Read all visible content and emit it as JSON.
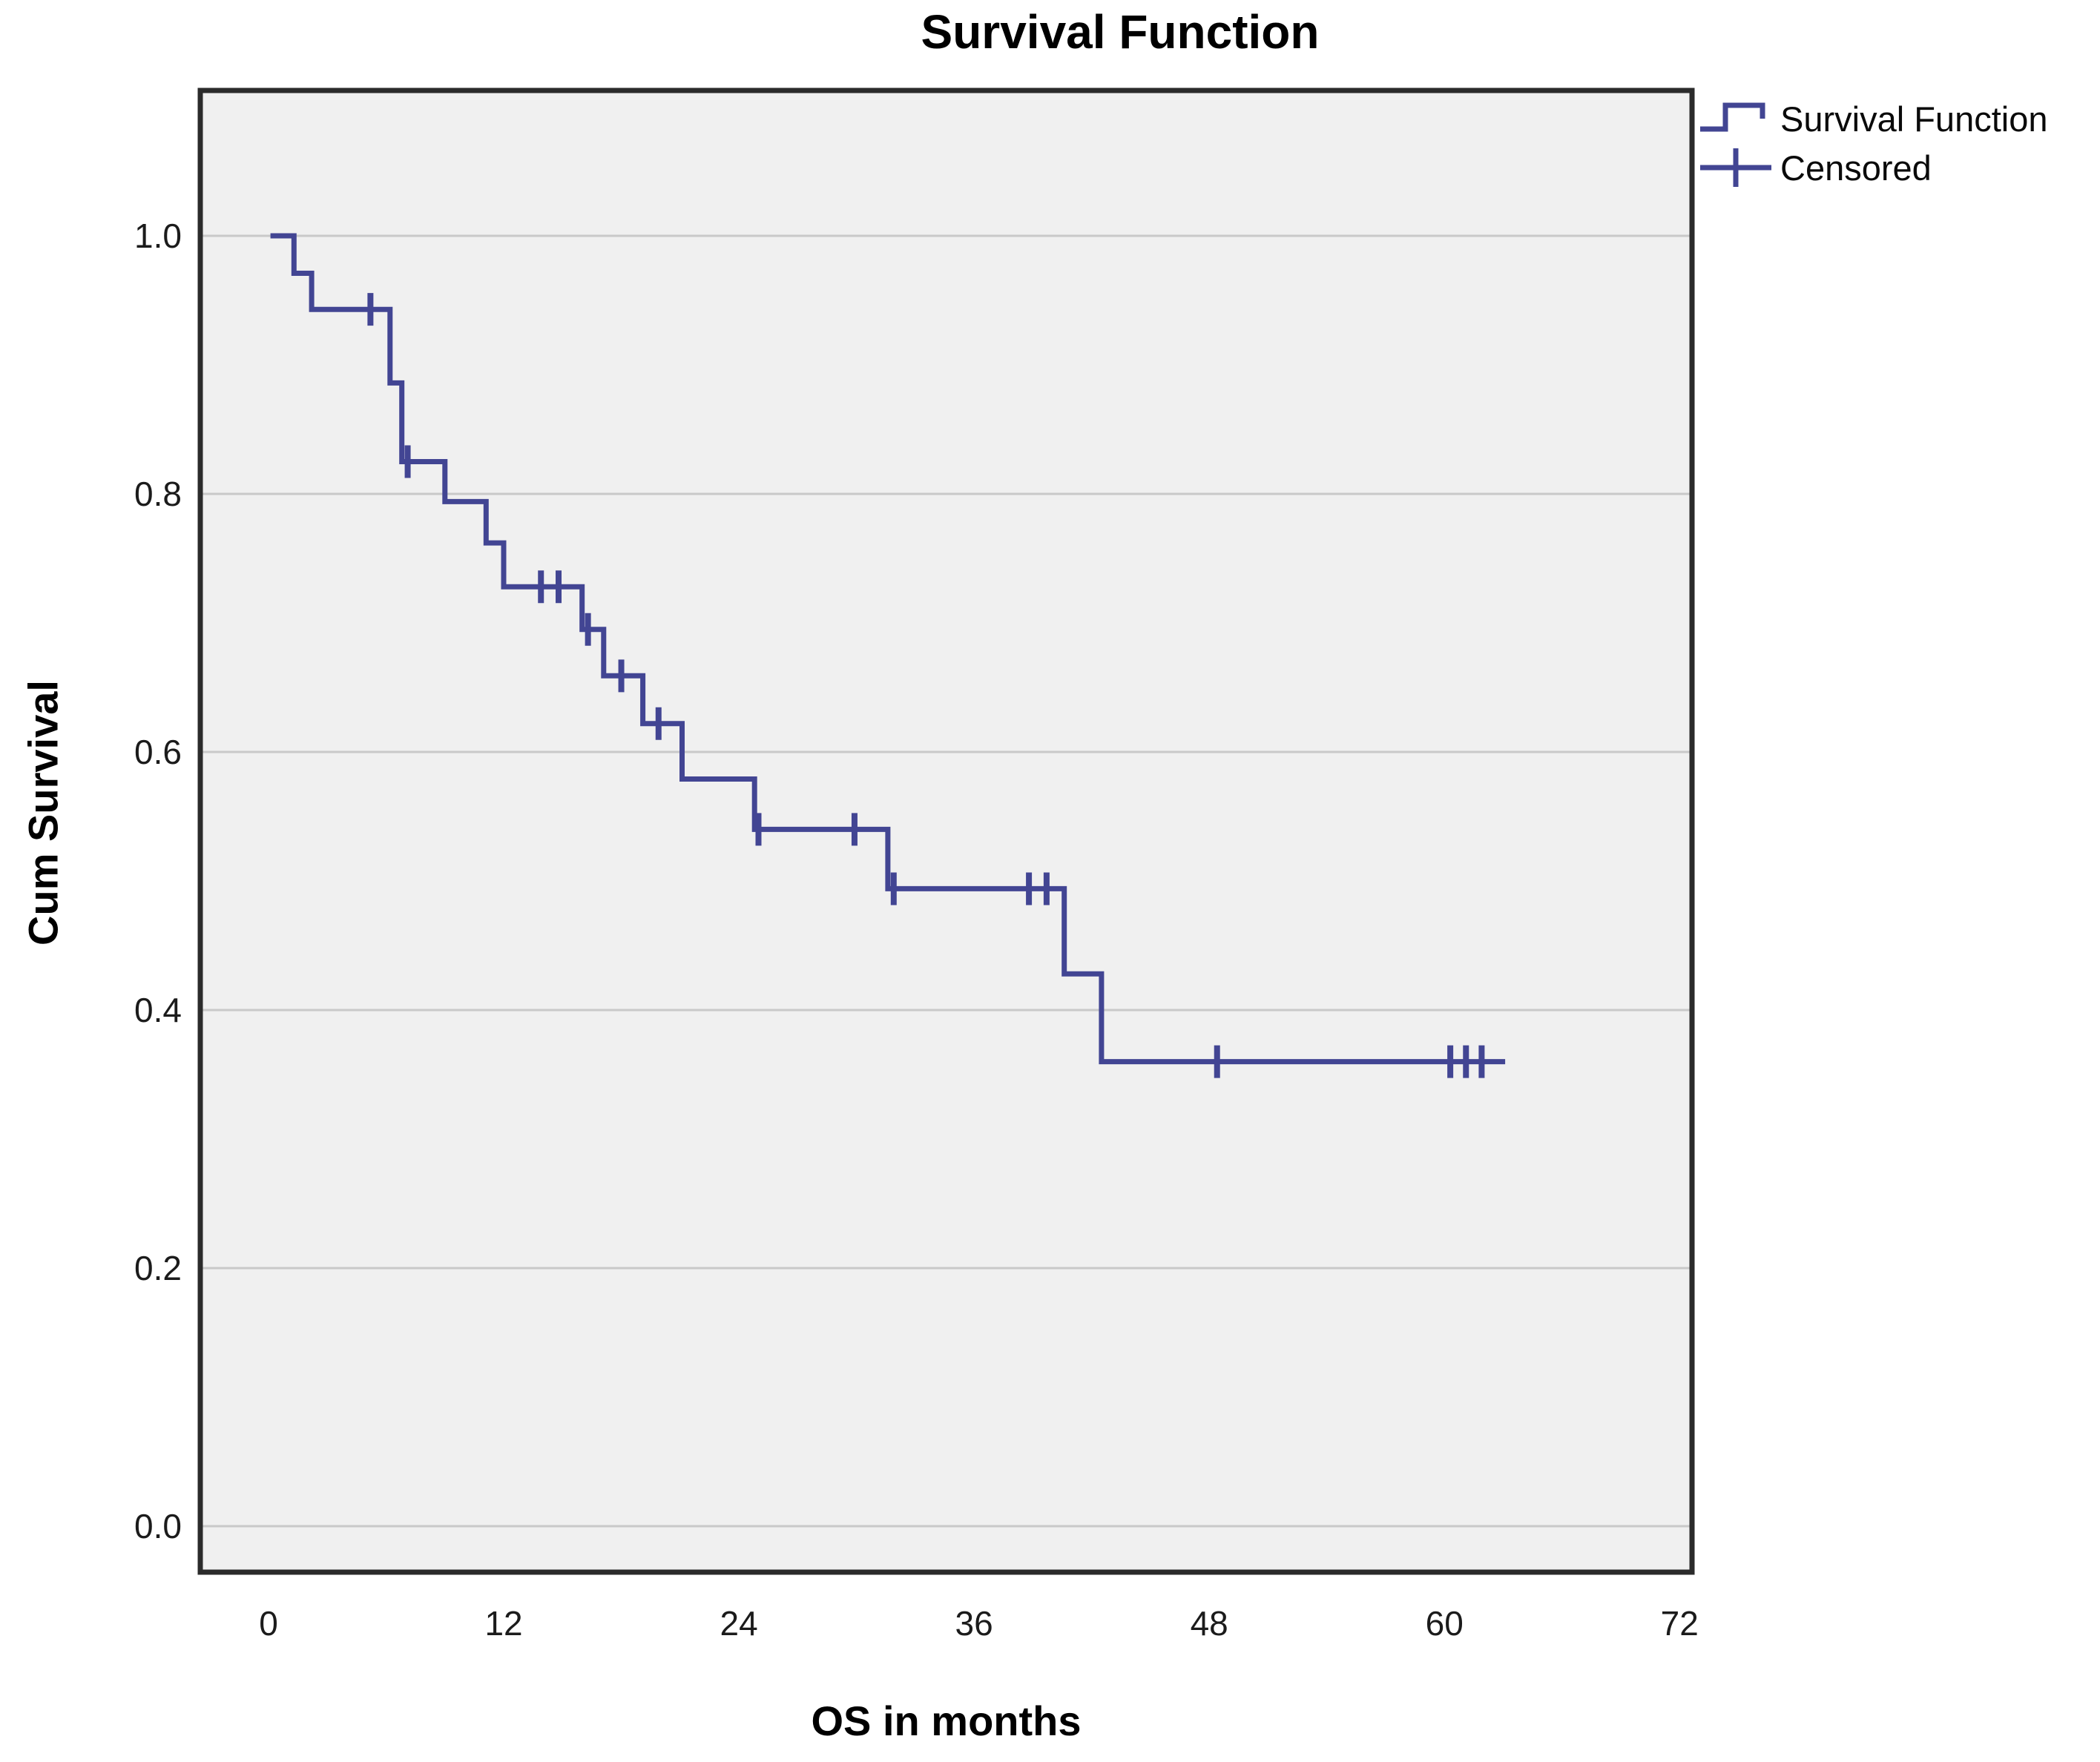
{
  "chart": {
    "title": "Survival Function",
    "xlabel": "OS in months",
    "ylabel": "Cum Survival"
  },
  "chart_data": {
    "type": "line",
    "subtype": "kaplan_meier_step",
    "title": "Survival Function",
    "xlabel": "OS in months",
    "ylabel": "Cum Survival",
    "xlim": [
      0,
      72
    ],
    "ylim": [
      0.0,
      1.0
    ],
    "xticks": [
      0,
      12,
      24,
      36,
      48,
      60,
      72
    ],
    "ytick_labels": [
      "0.0",
      "0.2",
      "0.4",
      "0.6",
      "0.8",
      "1.0"
    ],
    "grid": "horizontal",
    "legend_position": "top-right-outside",
    "legend": [
      {
        "label": "Survival Function",
        "symbol": "step-line"
      },
      {
        "label": "Censored",
        "symbol": "plus"
      }
    ],
    "series": [
      {
        "name": "Survival Function",
        "style": "step",
        "segments": [
          {
            "from": 0.1,
            "to": 1.3,
            "s": 1.0
          },
          {
            "from": 1.3,
            "to": 2.2,
            "s": 0.971
          },
          {
            "from": 2.2,
            "to": 6.2,
            "s": 0.943
          },
          {
            "from": 6.2,
            "to": 6.8,
            "s": 0.886
          },
          {
            "from": 6.8,
            "to": 9.0,
            "s": 0.825
          },
          {
            "from": 9.0,
            "to": 11.1,
            "s": 0.794
          },
          {
            "from": 11.1,
            "to": 12.0,
            "s": 0.762
          },
          {
            "from": 12.0,
            "to": 16.0,
            "s": 0.728
          },
          {
            "from": 16.0,
            "to": 17.1,
            "s": 0.695
          },
          {
            "from": 17.1,
            "to": 19.1,
            "s": 0.659
          },
          {
            "from": 19.1,
            "to": 21.1,
            "s": 0.622
          },
          {
            "from": 21.1,
            "to": 24.8,
            "s": 0.579
          },
          {
            "from": 24.8,
            "to": 31.6,
            "s": 0.54
          },
          {
            "from": 31.6,
            "to": 40.6,
            "s": 0.494
          },
          {
            "from": 40.6,
            "to": 42.5,
            "s": 0.428
          },
          {
            "from": 42.5,
            "to": 63.1,
            "s": 0.36
          }
        ]
      }
    ],
    "censored_points": [
      {
        "t": 5.2,
        "s": 0.943
      },
      {
        "t": 7.1,
        "s": 0.825
      },
      {
        "t": 13.9,
        "s": 0.728
      },
      {
        "t": 14.8,
        "s": 0.728
      },
      {
        "t": 16.3,
        "s": 0.695
      },
      {
        "t": 18.0,
        "s": 0.659
      },
      {
        "t": 19.9,
        "s": 0.622
      },
      {
        "t": 25.0,
        "s": 0.54
      },
      {
        "t": 29.9,
        "s": 0.54
      },
      {
        "t": 31.9,
        "s": 0.494
      },
      {
        "t": 38.8,
        "s": 0.494
      },
      {
        "t": 39.7,
        "s": 0.494
      },
      {
        "t": 48.4,
        "s": 0.36
      },
      {
        "t": 60.3,
        "s": 0.36
      },
      {
        "t": 61.1,
        "s": 0.36
      },
      {
        "t": 61.9,
        "s": 0.36
      }
    ],
    "colors": {
      "curve": "#424593",
      "plot_background": "#F0F0F0",
      "gridline": "#C9C9C9",
      "frame": "#2B2B2B",
      "tick_text": "#1B1B1B",
      "page_background": "#FFFFFF"
    }
  }
}
